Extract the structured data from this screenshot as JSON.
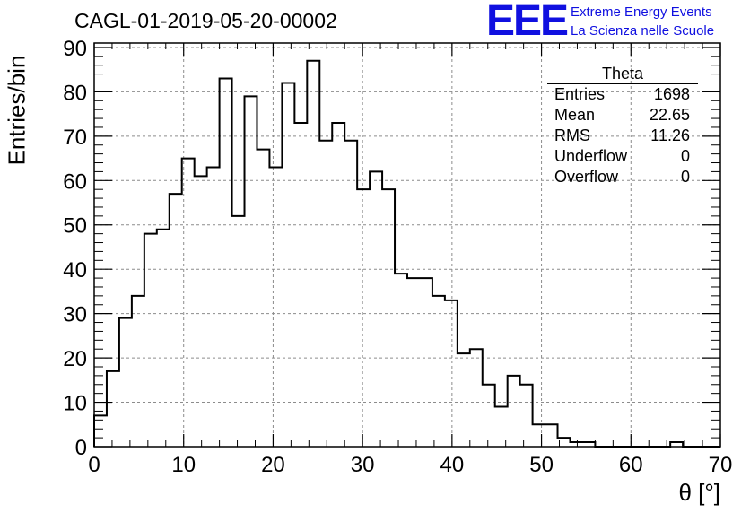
{
  "header": {
    "run_title": "CAGL-01-2019-05-20-00002",
    "logo_text": "EEE",
    "logo_line1": "Extreme Energy Events",
    "logo_line2": "La Scienza nelle Scuole"
  },
  "stats": {
    "title": "Theta",
    "rows": [
      {
        "label": "Entries",
        "value": "1698"
      },
      {
        "label": "Mean",
        "value": "22.65"
      },
      {
        "label": "RMS",
        "value": "11.26"
      },
      {
        "label": "Underflow",
        "value": "0"
      },
      {
        "label": "Overflow",
        "value": "0"
      }
    ]
  },
  "colors": {
    "line": "#000000",
    "grid": "#8c8c8c",
    "logo": "#1010e0"
  },
  "chart_data": {
    "type": "histogram",
    "title": "CAGL-01-2019-05-20-00002",
    "xlabel": "θ [°]",
    "ylabel": "Entries/bin",
    "xlim": [
      0,
      70
    ],
    "ylim": [
      0,
      91
    ],
    "bin_width": 1.4,
    "grid": true,
    "x_ticks": [
      0,
      10,
      20,
      30,
      40,
      50,
      60,
      70
    ],
    "y_ticks": [
      0,
      10,
      20,
      30,
      40,
      50,
      60,
      70,
      80,
      90
    ],
    "bin_edges": [
      0,
      1.4,
      2.8,
      4.2,
      5.6,
      7.0,
      8.4,
      9.8,
      11.2,
      12.6,
      14.0,
      15.4,
      16.8,
      18.2,
      19.6,
      21.0,
      22.4,
      23.8,
      25.2,
      26.6,
      28.0,
      29.4,
      30.8,
      32.2,
      33.6,
      35.0,
      36.4,
      37.8,
      39.2,
      40.6,
      42.0,
      43.4,
      44.8,
      46.2,
      47.6,
      49.0,
      50.4,
      51.8,
      53.2,
      54.6,
      56.0,
      57.4,
      58.8,
      60.2,
      61.6,
      63.0,
      64.4,
      65.8,
      67.2,
      68.6,
      70.0
    ],
    "counts": [
      7,
      17,
      29,
      34,
      48,
      49,
      57,
      65,
      61,
      63,
      83,
      52,
      79,
      67,
      63,
      82,
      73,
      87,
      69,
      73,
      69,
      58,
      62,
      58,
      39,
      38,
      38,
      34,
      33,
      21,
      22,
      14,
      9,
      16,
      14,
      5,
      5,
      2,
      1,
      1,
      0,
      0,
      0,
      0,
      0,
      0,
      1,
      0,
      0,
      0
    ]
  }
}
